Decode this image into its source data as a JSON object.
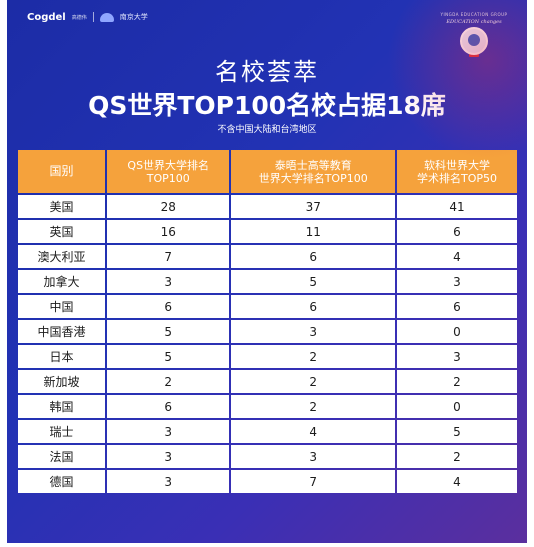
{
  "header": {
    "brand": "Cogdel",
    "brand_sub": "高德伟",
    "university": "南京大学",
    "right_small": "YINGDA EDUCATION GROUP",
    "right_edu": "EDUCATION changes"
  },
  "title": {
    "line1": "名校荟萃",
    "line2": "QS世界TOP100名校占据18席",
    "note": "不含中国大陆和台湾地区"
  },
  "table": {
    "headers": [
      "国别",
      "QS世界大学排名\nTOP100",
      "泰晤士高等教育\n世界大学排名TOP100",
      "软科世界大学\n学术排名TOP50"
    ],
    "rows": [
      {
        "country": "美国",
        "qs": "28",
        "the": "37",
        "arwu": "41"
      },
      {
        "country": "英国",
        "qs": "16",
        "the": "11",
        "arwu": "6"
      },
      {
        "country": "澳大利亚",
        "qs": "7",
        "the": "6",
        "arwu": "4"
      },
      {
        "country": "加拿大",
        "qs": "3",
        "the": "5",
        "arwu": "3"
      },
      {
        "country": "中国",
        "qs": "6",
        "the": "6",
        "arwu": "6"
      },
      {
        "country": "中国香港",
        "qs": "5",
        "the": "3",
        "arwu": "0"
      },
      {
        "country": "日本",
        "qs": "5",
        "the": "2",
        "arwu": "3"
      },
      {
        "country": "新加坡",
        "qs": "2",
        "the": "2",
        "arwu": "2"
      },
      {
        "country": "韩国",
        "qs": "6",
        "the": "2",
        "arwu": "0"
      },
      {
        "country": "瑞士",
        "qs": "3",
        "the": "4",
        "arwu": "5"
      },
      {
        "country": "法国",
        "qs": "3",
        "the": "3",
        "arwu": "2"
      },
      {
        "country": "德国",
        "qs": "3",
        "the": "7",
        "arwu": "4"
      }
    ]
  },
  "colors": {
    "background": "#2232b4",
    "header_fill": "#f5a23c",
    "cell_fill": "#ffffff"
  }
}
